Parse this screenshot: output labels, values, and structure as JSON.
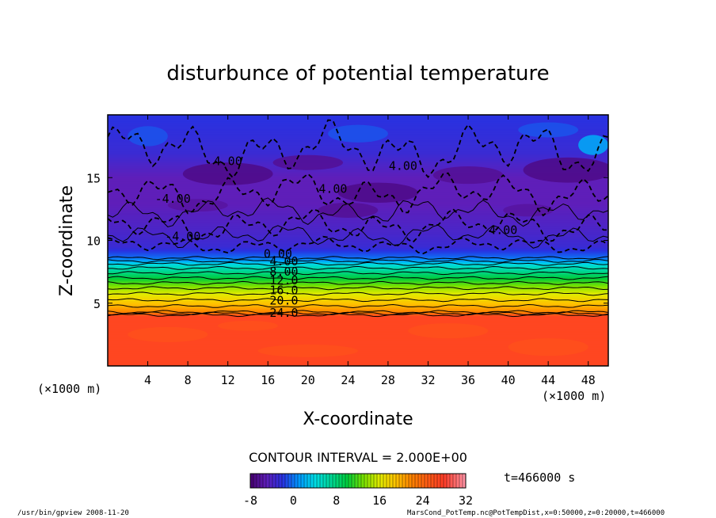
{
  "chart_data": {
    "type": "heatmap",
    "title": "disturbunce of potential temperature",
    "xlabel": "X-coordinate",
    "ylabel": "Z-coordinate",
    "x_unit": "(×1000 m)",
    "y_unit": "(×1000 m)",
    "xlim": [
      0,
      50
    ],
    "ylim": [
      0,
      20
    ],
    "x_ticks": [
      "4",
      "8",
      "12",
      "16",
      "20",
      "24",
      "28",
      "32",
      "36",
      "40",
      "44",
      "48"
    ],
    "y_ticks": [
      "5",
      "10",
      "15"
    ],
    "contour_interval_label": "CONTOUR INTERVAL = 2.000E+00",
    "time_label": "t=466000 s",
    "colorbar_ticks": [
      "-8",
      "0",
      "8",
      "16",
      "24",
      "32"
    ],
    "colorbar_range": [
      -8,
      32
    ],
    "contour_labels": [
      {
        "text": "4.00",
        "x": 12,
        "z": 16.0
      },
      {
        "text": "-4.00",
        "x": 6.5,
        "z": 13.0
      },
      {
        "text": "4.00",
        "x": 22.5,
        "z": 13.8
      },
      {
        "text": "4.00",
        "x": 29.5,
        "z": 15.6
      },
      {
        "text": "-4.00",
        "x": 7.5,
        "z": 10.0
      },
      {
        "text": "4.00",
        "x": 39.5,
        "z": 10.5
      },
      {
        "text": "0.00",
        "x": 17.0,
        "z": 8.6
      },
      {
        "text": "4.00",
        "x": 17.6,
        "z": 8.0
      },
      {
        "text": "8.00",
        "x": 17.6,
        "z": 7.2
      },
      {
        "text": "12.0",
        "x": 17.6,
        "z": 6.5
      },
      {
        "text": "16.0",
        "x": 17.6,
        "z": 5.7
      },
      {
        "text": "20.0",
        "x": 17.6,
        "z": 4.9
      },
      {
        "text": "24.0",
        "x": 17.6,
        "z": 3.9
      }
    ],
    "profile_vs_height": [
      {
        "z": 0.0,
        "value": 27
      },
      {
        "z": 4.0,
        "value": 27
      },
      {
        "z": 4.3,
        "value": 22
      },
      {
        "z": 5.0,
        "value": 19
      },
      {
        "z": 6.0,
        "value": 15
      },
      {
        "z": 7.0,
        "value": 10
      },
      {
        "z": 8.0,
        "value": 5
      },
      {
        "z": 8.6,
        "value": 0
      },
      {
        "z": 9.5,
        "value": -3
      },
      {
        "z": 11.0,
        "value": -4
      },
      {
        "z": 13.0,
        "value": -5
      },
      {
        "z": 15.0,
        "value": -5
      },
      {
        "z": 17.0,
        "value": -3
      },
      {
        "z": 20.0,
        "value": -2
      }
    ]
  },
  "footer": {
    "left": "/usr/bin/gpview  2008-11-20",
    "right": "MarsCond_PotTemp.nc@PotTempDist,x=0:50000,z=0:20000,t=466000"
  }
}
